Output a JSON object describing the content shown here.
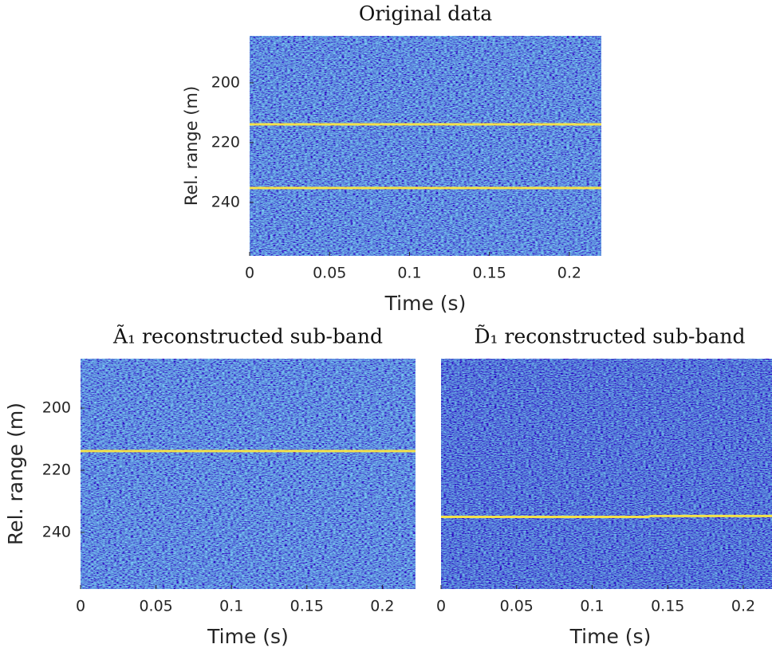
{
  "chart_data": [
    {
      "type": "heatmap",
      "title": "Original data",
      "xlabel": "Time (s)",
      "ylabel": "Rel. range (m)",
      "xlim": [
        0,
        0.22
      ],
      "ylim": [
        184.3,
        257.9
      ],
      "y_reversed": true,
      "xticks": [
        0,
        0.05,
        0.1,
        0.15,
        0.2
      ],
      "yticks": [
        200,
        220,
        240
      ],
      "lines": [
        {
          "color": "#f3e14a",
          "x": [
            0,
            0.22
          ],
          "values": [
            213.9,
            213.9
          ]
        },
        {
          "color": "#f3e14a",
          "x": [
            0,
            0.22
          ],
          "values": [
            235.2,
            235.2
          ]
        }
      ]
    },
    {
      "type": "heatmap",
      "title": "Ã₁ reconstructed sub-band",
      "xlabel": "Time (s)",
      "ylabel": "Rel. range (m)",
      "xlim": [
        0,
        0.222
      ],
      "ylim": [
        184.1,
        258.2
      ],
      "y_reversed": true,
      "xticks": [
        0,
        0.05,
        0.1,
        0.15,
        0.2
      ],
      "yticks": [
        200,
        220,
        240
      ],
      "lines": [
        {
          "color": "#f3e14a",
          "x": [
            0,
            0.222
          ],
          "values": [
            213.8,
            213.8
          ]
        }
      ]
    },
    {
      "type": "heatmap",
      "title": "D̃₁ reconstructed sub-band",
      "xlabel": "Time (s)",
      "xlim": [
        0,
        0.219
      ],
      "ylim": [
        184.1,
        258.2
      ],
      "y_reversed": true,
      "xticks": [
        0,
        0.05,
        0.1,
        0.15,
        0.2
      ],
      "lines": [
        {
          "color": "#f3e14a",
          "x": [
            0,
            0.137,
            0.139,
            0.219
          ],
          "values": [
            235.0,
            235.0,
            234.7,
            234.7
          ]
        }
      ]
    }
  ]
}
